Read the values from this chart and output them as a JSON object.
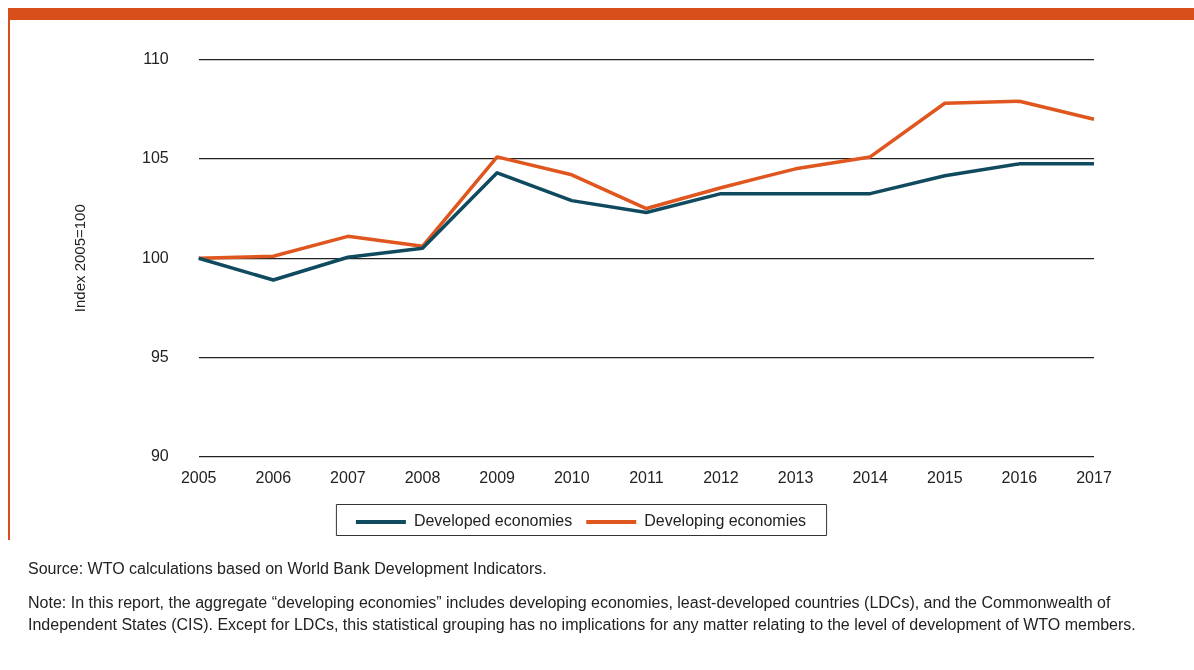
{
  "chart_data": {
    "type": "line",
    "ylabel": "Index 2005=100",
    "categories": [
      "2005",
      "2006",
      "2007",
      "2008",
      "2009",
      "2010",
      "2011",
      "2012",
      "2013",
      "2014",
      "2015",
      "2016",
      "2017"
    ],
    "series": [
      {
        "name": "Developed economies",
        "color": "#0f4a5f",
        "values": [
          100,
          98.9,
          100.05,
          100.5,
          104.3,
          102.9,
          102.3,
          103.25,
          103.25,
          103.25,
          104.15,
          104.75,
          104.75
        ]
      },
      {
        "name": "Developing economies",
        "color": "#e0561f",
        "values": [
          100,
          100.1,
          101.1,
          100.6,
          105.1,
          104.2,
          102.5,
          103.55,
          104.5,
          105.1,
          107.8,
          107.9,
          107.0
        ]
      }
    ],
    "ylim": [
      90,
      110
    ],
    "yticks": [
      90,
      95,
      100,
      105,
      110
    ],
    "grid": "y",
    "legend": "bottom",
    "marker": "none",
    "line_style": "solid",
    "annotations": [
      "Source: WTO calculations based on World Bank Development Indicators.",
      "Note: In this report, the aggregate “developing economies” includes developing economies, least-developed countries (LDCs), and the Commonwealth of Independent States (CIS). Except for LDCs, this statistical grouping has no implications for any matter relating to the level of development of WTO members."
    ]
  }
}
